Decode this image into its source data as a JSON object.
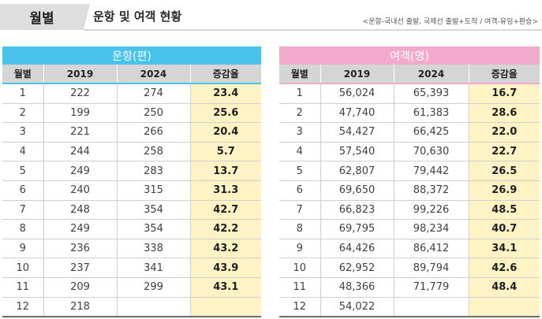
{
  "header": {
    "tab_label": "월별",
    "title": "운항 및 여객 현황",
    "note": "<운항-국내선 출발, 국제선 출발+도착 / 여객-유임+환승>"
  },
  "operations_table": {
    "group_header": "운항(편)",
    "columns": [
      "월별",
      "2019",
      "2024",
      "증감율"
    ],
    "rows": [
      [
        "1",
        "222",
        "274",
        "23.4"
      ],
      [
        "2",
        "199",
        "250",
        "25.6"
      ],
      [
        "3",
        "221",
        "266",
        "20.4"
      ],
      [
        "4",
        "244",
        "258",
        "5.7"
      ],
      [
        "5",
        "249",
        "283",
        "13.7"
      ],
      [
        "6",
        "240",
        "315",
        "31.3"
      ],
      [
        "7",
        "248",
        "354",
        "42.7"
      ],
      [
        "8",
        "249",
        "354",
        "42.2"
      ],
      [
        "9",
        "236",
        "338",
        "43.2"
      ],
      [
        "10",
        "237",
        "341",
        "43.9"
      ],
      [
        "11",
        "209",
        "299",
        "43.1"
      ],
      [
        "12",
        "218",
        "",
        ""
      ]
    ]
  },
  "passengers_table": {
    "group_header": "여객(명)",
    "columns": [
      "월별",
      "2019",
      "2024",
      "증감율"
    ],
    "rows": [
      [
        "1",
        "56,024",
        "65,393",
        "16.7"
      ],
      [
        "2",
        "47,740",
        "61,383",
        "28.6"
      ],
      [
        "3",
        "54,427",
        "66,425",
        "22.0"
      ],
      [
        "4",
        "57,540",
        "70,630",
        "22.7"
      ],
      [
        "5",
        "62,807",
        "79,442",
        "26.5"
      ],
      [
        "6",
        "69,650",
        "88,372",
        "26.9"
      ],
      [
        "7",
        "66,823",
        "99,226",
        "48.5"
      ],
      [
        "8",
        "69,795",
        "98,234",
        "40.7"
      ],
      [
        "9",
        "64,426",
        "86,412",
        "34.1"
      ],
      [
        "10",
        "62,952",
        "89,794",
        "42.6"
      ],
      [
        "11",
        "48,366",
        "71,779",
        "48.4"
      ],
      [
        "12",
        "54,022",
        "",
        ""
      ]
    ]
  },
  "colors": {
    "operations_accent": "#49c3ec",
    "passengers_accent": "#f1a9cc",
    "rate_highlight": "#fdf3c4",
    "column_header_bg": "#d5d5d5"
  }
}
